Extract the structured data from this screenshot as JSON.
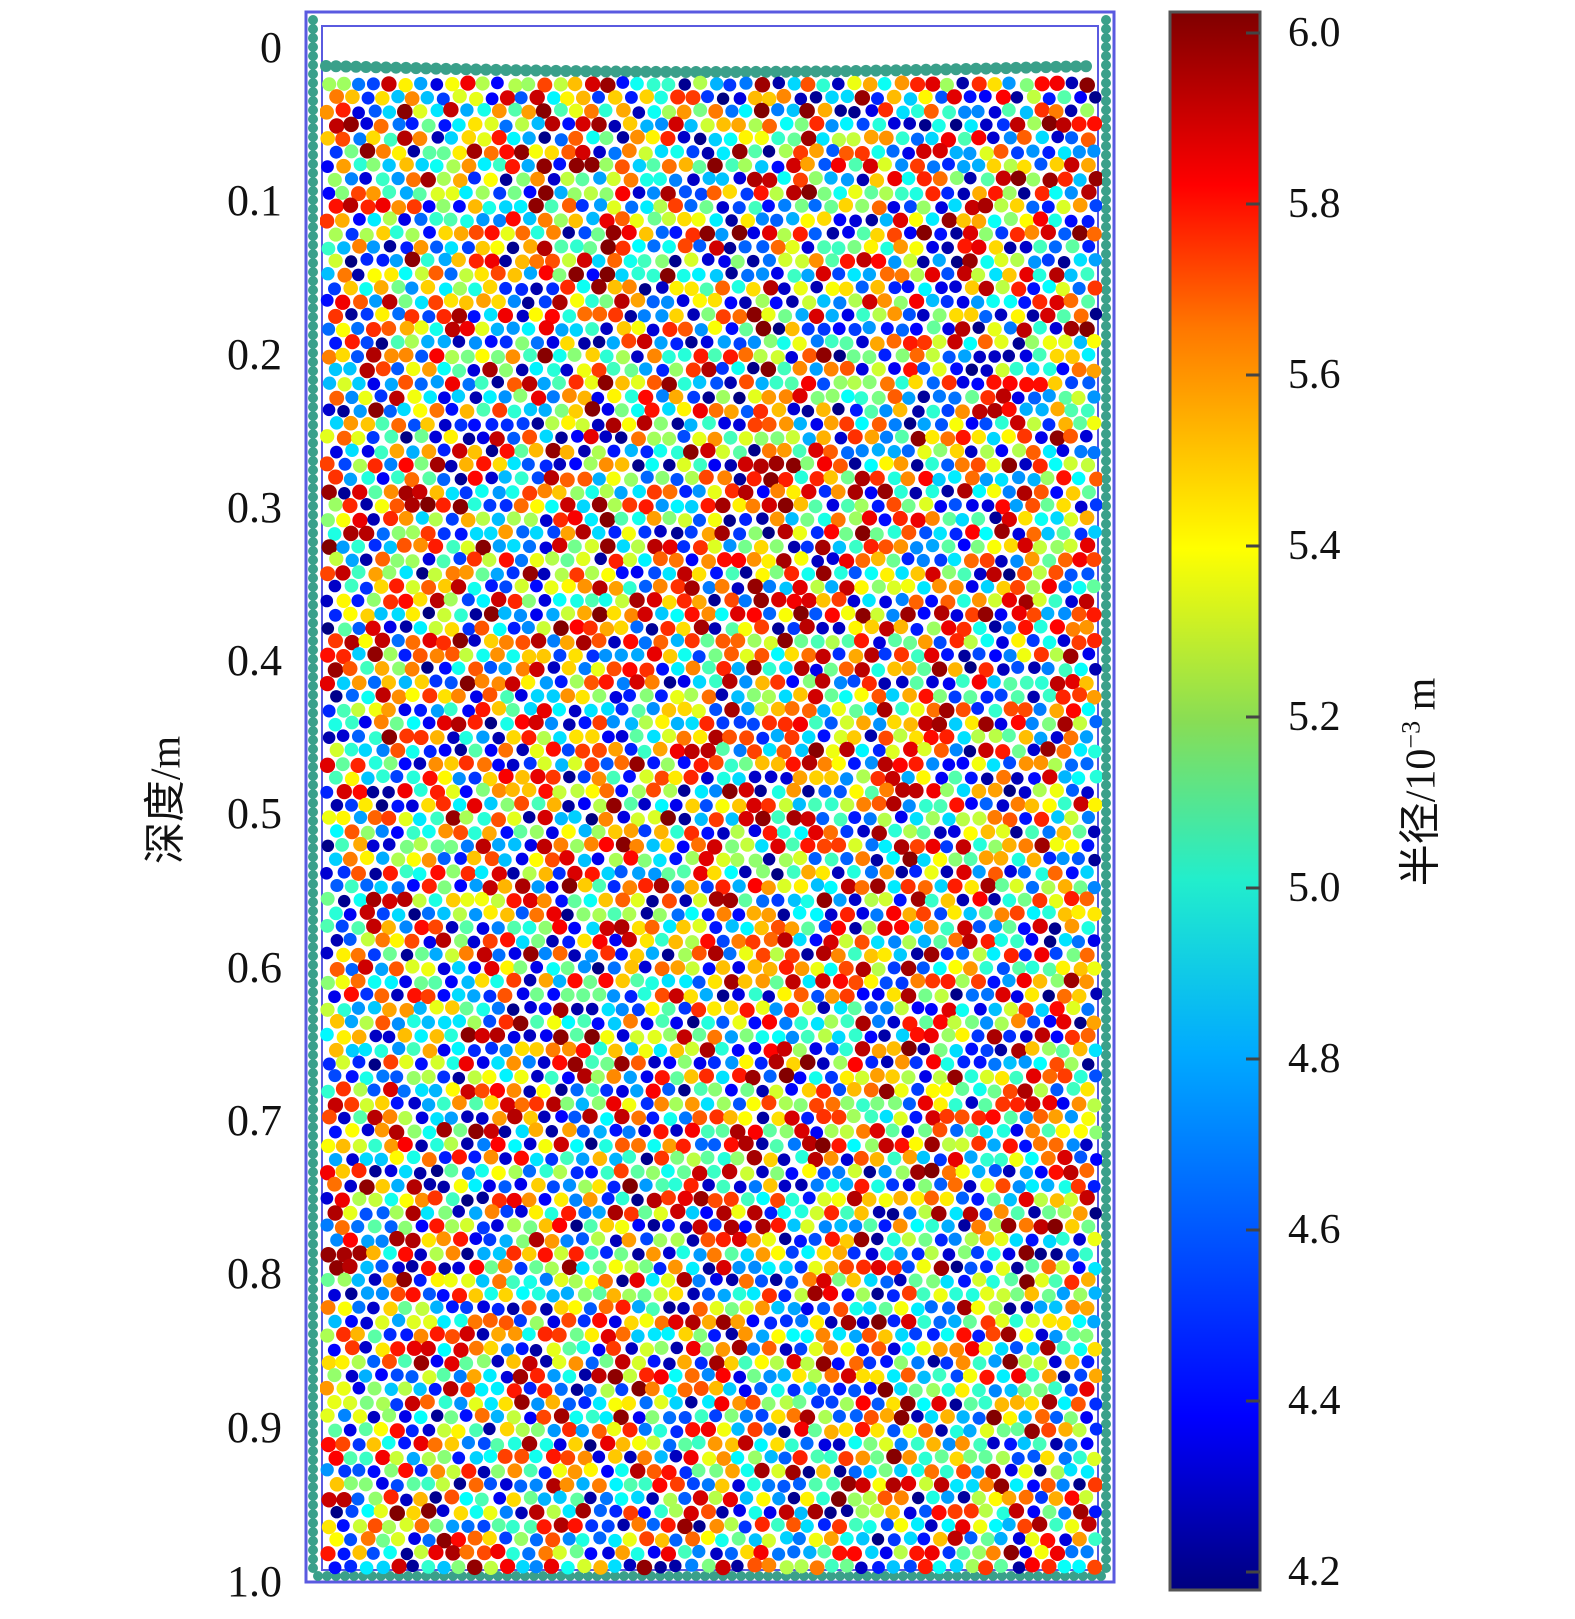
{
  "chart_data": {
    "type": "heatmap",
    "title": "",
    "ylabel": "深度/m",
    "y_ticks": [
      "0",
      "0.1",
      "0.2",
      "0.3",
      "0.4",
      "0.5",
      "0.6",
      "0.7",
      "0.8",
      "0.9",
      "1.0"
    ],
    "ylim": [
      0,
      1.0
    ],
    "colorbar": {
      "label_prefix": "半径/10",
      "label_exponent": "−3",
      "label_unit": " m",
      "ticks": [
        "6.0",
        "5.8",
        "5.6",
        "5.4",
        "5.2",
        "5.0",
        "4.8",
        "4.6",
        "4.4",
        "4.2"
      ],
      "range": [
        4.2,
        6.0
      ],
      "colormap": "jet"
    },
    "description_values": {
      "radius_min": 4.2,
      "radius_max": 6.0
    }
  },
  "colors": {
    "container_border": "#5a5ae0",
    "wall_particles": "#3aa08a",
    "colorbar_border": "#555555"
  }
}
